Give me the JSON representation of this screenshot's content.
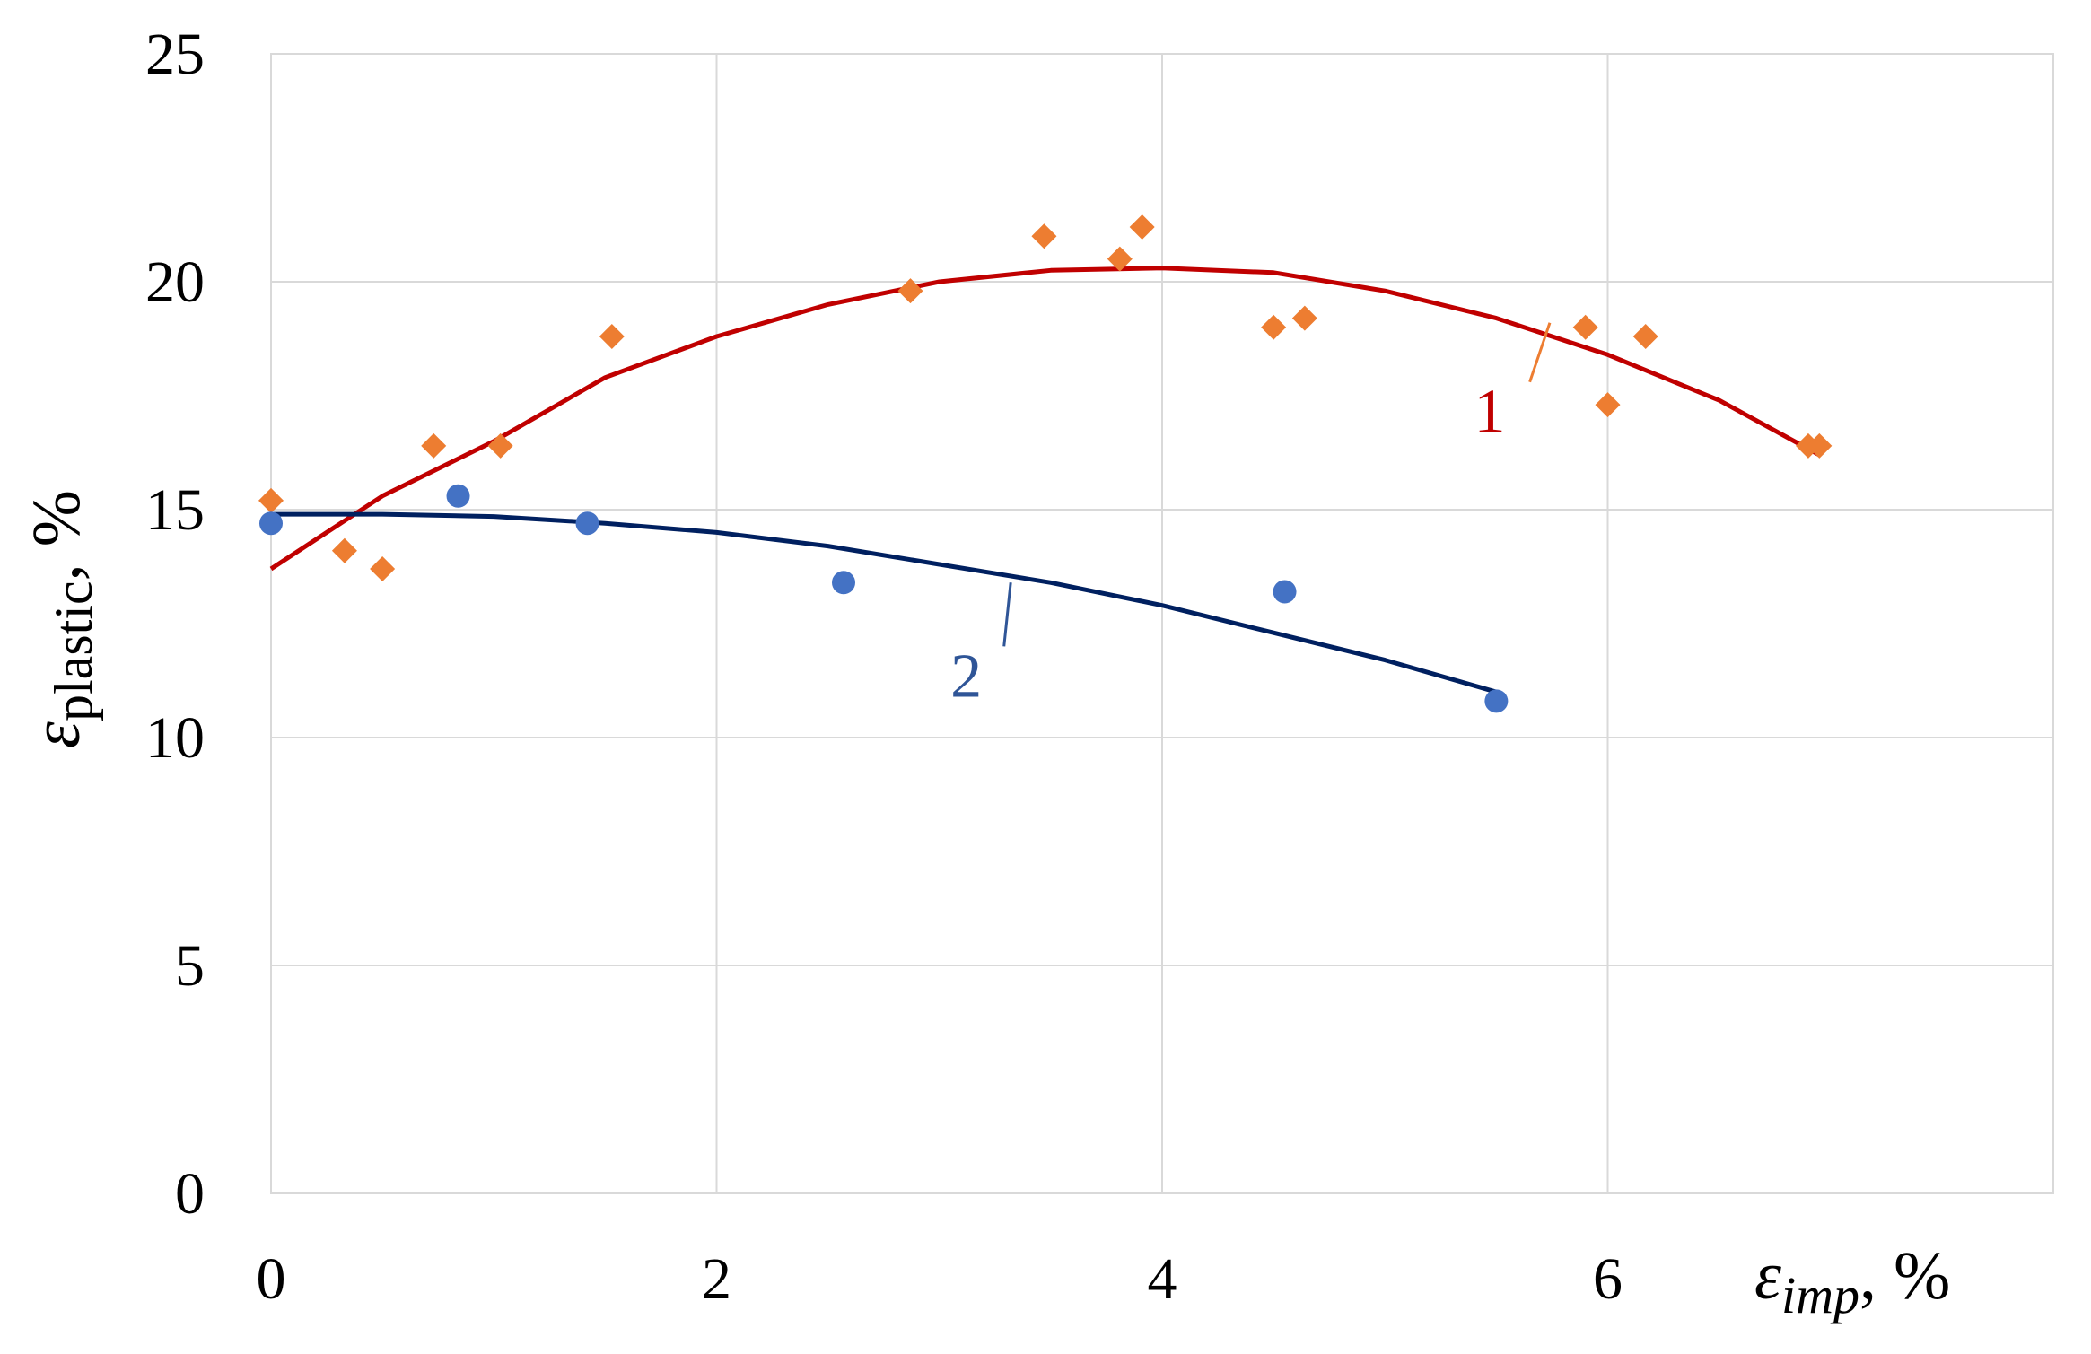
{
  "chart_data": {
    "type": "scatter",
    "title": "",
    "x_axis": {
      "label_symbol": "ε",
      "label_subscript": "imp",
      "label_unit": ", %",
      "range": [
        0,
        8
      ],
      "ticks": [
        0,
        2,
        4,
        6
      ],
      "tick_labels": [
        "0",
        "2",
        "4",
        "6"
      ]
    },
    "y_axis": {
      "label_symbol": "ε",
      "label_subscript": "plastic",
      "label_unit": ", %",
      "range": [
        0,
        25
      ],
      "ticks": [
        0,
        5,
        10,
        15,
        20,
        25
      ],
      "tick_labels": [
        "0",
        "5",
        "10",
        "15",
        "20",
        "25"
      ]
    },
    "grid": true,
    "legend": "none",
    "series": [
      {
        "label": "1",
        "marker": "diamond",
        "marker_color": "#ED7D31",
        "trend_color": "#C00000",
        "trend": "polynomial",
        "trend_x_range": [
          0,
          6.95
        ],
        "trend_points": [
          [
            0,
            13.7
          ],
          [
            0.5,
            15.3
          ],
          [
            1,
            16.5
          ],
          [
            1.5,
            17.9
          ],
          [
            2,
            18.8
          ],
          [
            2.5,
            19.5
          ],
          [
            3,
            20.0
          ],
          [
            3.5,
            20.25
          ],
          [
            4,
            20.3
          ],
          [
            4.5,
            20.2
          ],
          [
            5,
            19.8
          ],
          [
            5.5,
            19.2
          ],
          [
            6,
            18.4
          ],
          [
            6.5,
            17.4
          ],
          [
            6.95,
            16.2
          ]
        ],
        "points": [
          [
            0,
            15.2
          ],
          [
            0.33,
            14.1
          ],
          [
            0.5,
            13.7
          ],
          [
            0.73,
            16.4
          ],
          [
            1.03,
            16.4
          ],
          [
            1.53,
            18.8
          ],
          [
            2.87,
            19.8
          ],
          [
            3.47,
            21.0
          ],
          [
            3.81,
            20.5
          ],
          [
            3.91,
            21.2
          ],
          [
            4.5,
            19.0
          ],
          [
            4.64,
            19.2
          ],
          [
            5.9,
            19.0
          ],
          [
            6.0,
            17.3
          ],
          [
            6.17,
            18.8
          ],
          [
            6.9,
            16.4
          ],
          [
            6.95,
            16.4
          ]
        ]
      },
      {
        "label": "2",
        "marker": "circle",
        "marker_color": "#4472C4",
        "trend_color": "#002060",
        "trend": "polynomial",
        "trend_x_range": [
          0,
          5.5
        ],
        "trend_points": [
          [
            0,
            14.9
          ],
          [
            0.5,
            14.9
          ],
          [
            1,
            14.85
          ],
          [
            1.5,
            14.7
          ],
          [
            2,
            14.5
          ],
          [
            2.5,
            14.2
          ],
          [
            3,
            13.8
          ],
          [
            3.5,
            13.4
          ],
          [
            4,
            12.9
          ],
          [
            4.5,
            12.3
          ],
          [
            5,
            11.7
          ],
          [
            5.5,
            11.0
          ]
        ],
        "points": [
          [
            0,
            14.7
          ],
          [
            0.84,
            15.3
          ],
          [
            1.42,
            14.7
          ],
          [
            2.57,
            13.4
          ],
          [
            4.55,
            13.2
          ],
          [
            5.5,
            10.8
          ]
        ]
      }
    ]
  }
}
